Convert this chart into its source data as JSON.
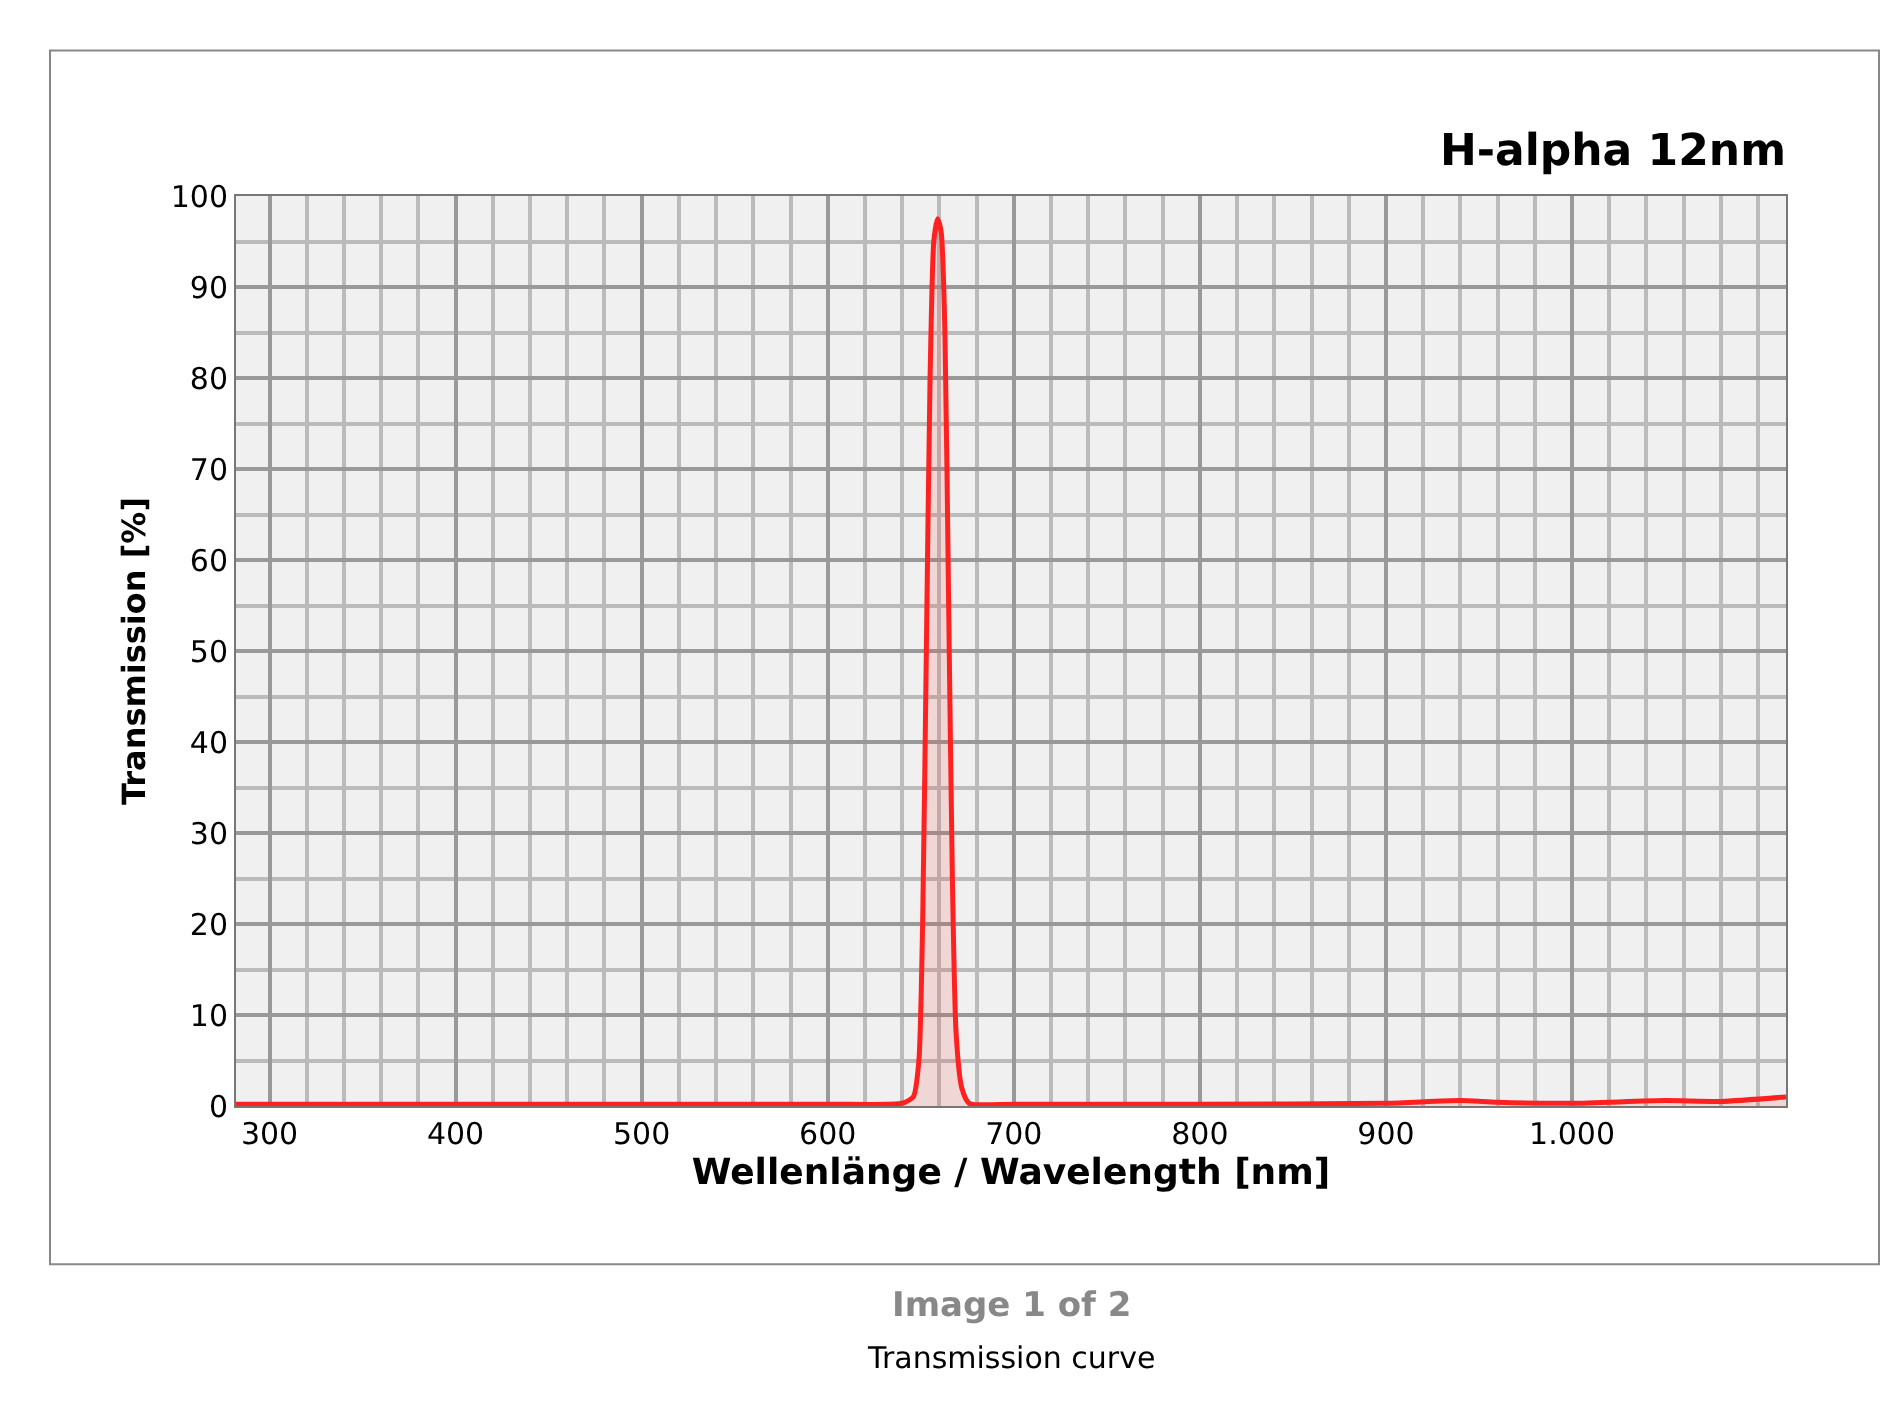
{
  "chart_data": {
    "type": "area",
    "title": "H-alpha 12nm",
    "xlabel": "Wellenlänge / Wavelength [nm]",
    "ylabel": "Transmission [%]",
    "annotations": [
      "Image 1 of 2",
      "Transmission curve"
    ],
    "x": [
      282,
      400,
      500,
      600,
      640,
      646,
      649,
      651,
      653,
      655,
      657,
      659,
      661,
      663,
      665,
      667,
      669,
      672,
      676,
      700,
      800,
      900,
      940,
      960,
      1000,
      1050,
      1080,
      1115
    ],
    "series": [
      {
        "color": "#ff2020",
        "values": [
          0.2,
          0.2,
          0.2,
          0.2,
          0.3,
          1,
          5,
          20,
          50,
          80,
          95,
          97.5,
          96,
          85,
          55,
          25,
          8,
          2,
          0.3,
          0.2,
          0.2,
          0.3,
          0.6,
          0.4,
          0.3,
          0.6,
          0.5,
          1.0
        ]
      }
    ],
    "xlim": [
      282,
      1115
    ],
    "xticks": [
      300,
      400,
      500,
      600,
      700,
      800,
      900,
      {
        "value": 1000,
        "label": "1.000"
      }
    ],
    "ylim": [
      0,
      100
    ],
    "yticks": [
      0,
      10,
      20,
      30,
      40,
      50,
      60,
      70,
      80,
      90,
      100
    ],
    "grid": true,
    "legend": false,
    "line_style": "solid",
    "marker": "none"
  }
}
